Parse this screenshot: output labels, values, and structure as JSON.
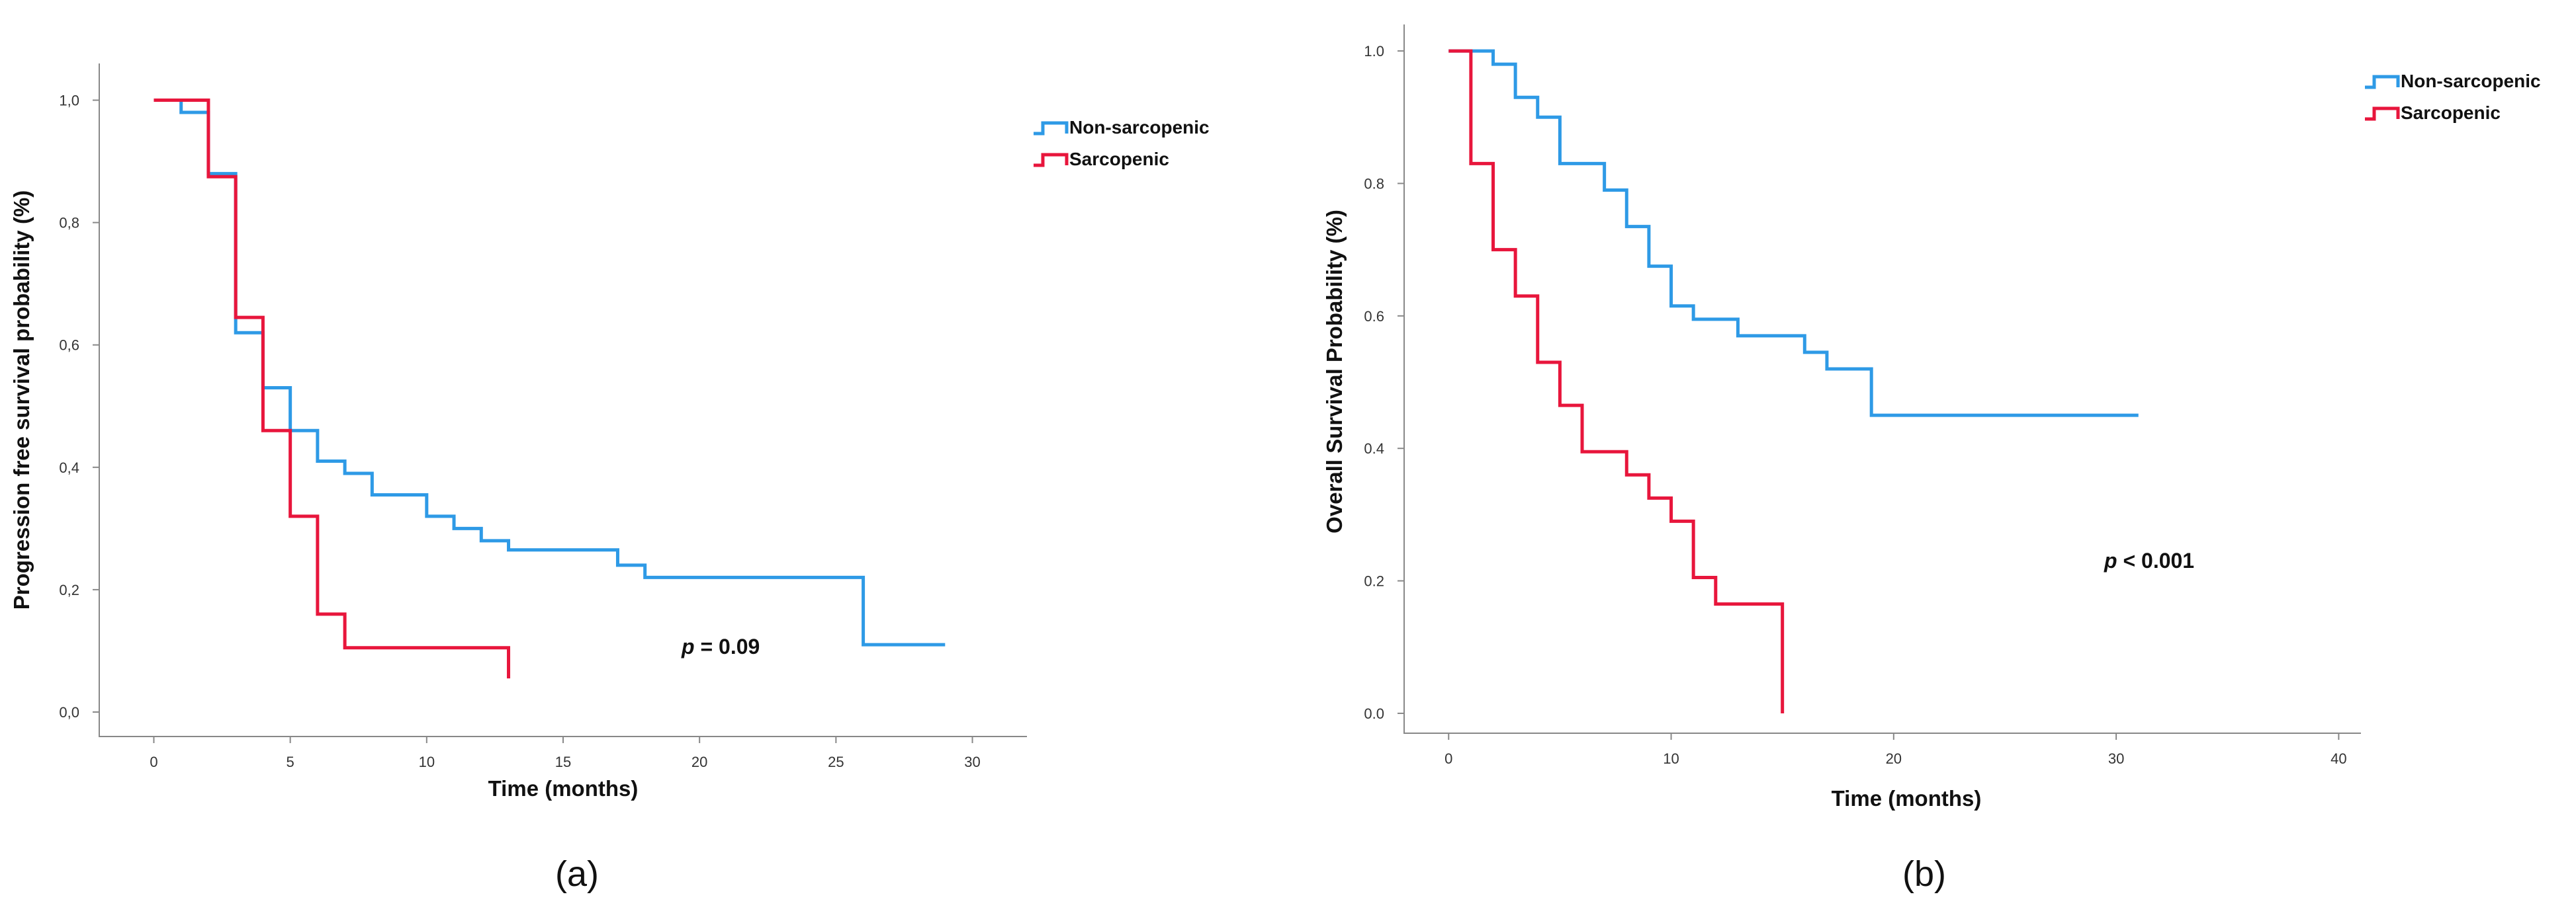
{
  "chart_data": [
    {
      "type": "line",
      "step": true,
      "panel_label": "(a)",
      "xlabel": "Time (months)",
      "ylabel": "Progression free survival probability (%)",
      "xlim": [
        -2,
        32
      ],
      "ylim": [
        -0.04,
        1.06
      ],
      "xticks": [
        0,
        5,
        10,
        15,
        20,
        25,
        30
      ],
      "yticks": [
        0,
        0.2,
        0.4,
        0.6,
        0.8,
        1.0
      ],
      "ytick_labels": [
        "0,0",
        "0,2",
        "0,4",
        "0,6",
        "0,8",
        "1,0"
      ],
      "legend": {
        "position": "top-right"
      },
      "annotation": {
        "p": "p",
        "text": " = 0.09"
      },
      "series": [
        {
          "name": "Non-sarcopenic",
          "color": "#2E9AE6",
          "x": [
            0,
            1,
            2,
            3,
            4,
            5,
            6,
            7,
            8,
            10,
            11,
            12,
            13,
            17,
            18,
            26,
            29
          ],
          "y": [
            1.0,
            0.98,
            0.88,
            0.62,
            0.53,
            0.46,
            0.41,
            0.39,
            0.355,
            0.32,
            0.3,
            0.28,
            0.265,
            0.24,
            0.22,
            0.11,
            0.11
          ]
        },
        {
          "name": "Sarcopenic",
          "color": "#E8163C",
          "x": [
            0,
            2,
            3,
            4,
            5,
            6,
            7,
            13,
            13
          ],
          "y": [
            1.0,
            0.875,
            0.645,
            0.46,
            0.32,
            0.16,
            0.105,
            0.105,
            0.055
          ]
        }
      ]
    },
    {
      "type": "line",
      "step": true,
      "panel_label": "(b)",
      "xlabel": "Time (months)",
      "ylabel": "Overall Survival Probability (%)",
      "xlim": [
        -2,
        41
      ],
      "ylim": [
        -0.03,
        1.04
      ],
      "xticks": [
        0,
        10,
        20,
        30,
        40
      ],
      "yticks": [
        0,
        0.2,
        0.4,
        0.6,
        0.8,
        1.0
      ],
      "ytick_labels": [
        "0.0",
        "0.2",
        "0.4",
        "0.6",
        "0.8",
        "1.0"
      ],
      "legend": {
        "position": "top-right"
      },
      "annotation": {
        "p": "p",
        "text": " < 0.001"
      },
      "series": [
        {
          "name": "Non-sarcopenic",
          "color": "#2E9AE6",
          "x": [
            0,
            2,
            3,
            4,
            5,
            6,
            7,
            8,
            9,
            10,
            11,
            13,
            16,
            17,
            19,
            31
          ],
          "y": [
            1.0,
            0.98,
            0.93,
            0.9,
            0.83,
            0.83,
            0.79,
            0.735,
            0.675,
            0.615,
            0.595,
            0.57,
            0.545,
            0.52,
            0.45,
            0.45
          ]
        },
        {
          "name": "Sarcopenic",
          "color": "#E8163C",
          "x": [
            0,
            1,
            2,
            3,
            4,
            5,
            6,
            8,
            9,
            10,
            11,
            12,
            15,
            15
          ],
          "y": [
            1.0,
            0.83,
            0.7,
            0.63,
            0.53,
            0.465,
            0.395,
            0.36,
            0.325,
            0.29,
            0.205,
            0.165,
            0.165,
            0.0
          ]
        }
      ]
    }
  ]
}
